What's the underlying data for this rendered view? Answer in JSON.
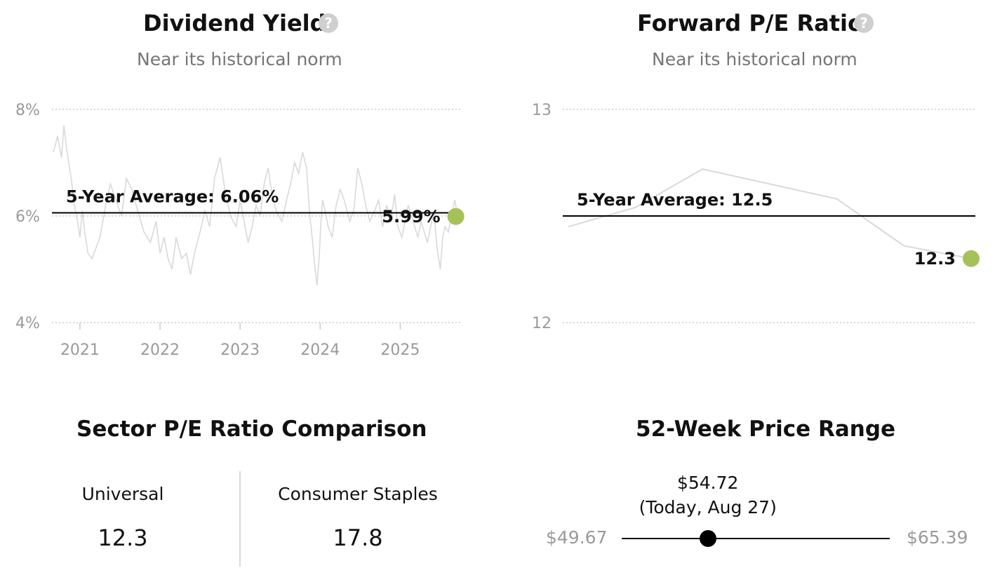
{
  "dividend": {
    "title": "Dividend Yield",
    "help": "?",
    "subtitle": "Near its historical norm"
  },
  "forward_pe": {
    "title": "Forward P/E Ratio",
    "help": "?",
    "subtitle": "Near its historical norm"
  },
  "sector": {
    "title": "Sector P/E Ratio Comparison",
    "items": [
      {
        "label": "Universal",
        "value": "12.3"
      },
      {
        "label": "Consumer Staples",
        "value": "17.8"
      }
    ]
  },
  "price_range": {
    "title": "52-Week Price Range",
    "low": "$49.67",
    "high": "$65.39",
    "current": "$54.72",
    "current_note": "(Today, Aug 27)",
    "current_value": 54.72,
    "low_value": 49.67,
    "high_value": 65.39
  },
  "colors": {
    "accent_dot": "#a7c15a",
    "series_line": "#d9d9d9",
    "average_line": "#000000",
    "grid": "#cccccc"
  },
  "chart_data": [
    {
      "type": "line",
      "title": "Dividend Yield",
      "ylim": [
        4,
        8
      ],
      "yticks": [
        4,
        6,
        8
      ],
      "ytick_labels": [
        "4%",
        "6%",
        "8%"
      ],
      "xticks": [
        "2021",
        "2022",
        "2023",
        "2024",
        "2025"
      ],
      "xtick_values": [
        2021.0,
        2022.0,
        2023.0,
        2024.0,
        2025.0
      ],
      "xlim": [
        2020.65,
        2025.75
      ],
      "average": 6.06,
      "average_label": "5-Year Average: 6.06%",
      "current": 5.99,
      "current_label": "5.99%",
      "grid": true,
      "series": [
        {
          "x": [
            2020.67,
            2020.72,
            2020.77,
            2020.8,
            2020.83,
            2020.87,
            2020.9,
            2020.93,
            2020.97,
            2021.0,
            2021.03,
            2021.06,
            2021.1,
            2021.15,
            2021.2,
            2021.25,
            2021.32,
            2021.38,
            2021.45,
            2021.52,
            2021.58,
            2021.65,
            2021.72,
            2021.8,
            2021.88,
            2021.95,
            2022.0,
            2022.05,
            2022.1,
            2022.15,
            2022.2,
            2022.27,
            2022.33,
            2022.38,
            2022.43,
            2022.5,
            2022.56,
            2022.62,
            2022.68,
            2022.75,
            2022.82,
            2022.88,
            2022.95,
            2023.0,
            2023.05,
            2023.1,
            2023.15,
            2023.2,
            2023.25,
            2023.3,
            2023.35,
            2023.4,
            2023.45,
            2023.52,
            2023.58,
            2023.63,
            2023.68,
            2023.73,
            2023.78,
            2023.83,
            2023.87,
            2023.9,
            2023.93,
            2023.96,
            2023.99,
            2024.01,
            2024.03,
            2024.06,
            2024.1,
            2024.15,
            2024.2,
            2024.25,
            2024.3,
            2024.37,
            2024.42,
            2024.47,
            2024.52,
            2024.57,
            2024.62,
            2024.68,
            2024.73,
            2024.78,
            2024.83,
            2024.88,
            2024.93,
            2024.97,
            2025.02,
            2025.06,
            2025.1,
            2025.14,
            2025.18,
            2025.22,
            2025.26,
            2025.3,
            2025.34,
            2025.38,
            2025.42,
            2025.46,
            2025.5,
            2025.53,
            2025.56,
            2025.6,
            2025.64,
            2025.68,
            2025.72
          ],
          "y": [
            7.2,
            7.5,
            7.1,
            7.7,
            7.3,
            6.9,
            6.6,
            6.2,
            5.9,
            5.6,
            6.1,
            5.7,
            5.3,
            5.2,
            5.4,
            5.6,
            6.2,
            6.6,
            6.3,
            6.0,
            6.7,
            6.5,
            6.1,
            5.7,
            5.5,
            5.9,
            5.3,
            5.6,
            5.2,
            5.0,
            5.6,
            5.2,
            5.3,
            4.9,
            5.3,
            5.7,
            6.1,
            5.8,
            6.7,
            7.1,
            6.4,
            6.0,
            5.8,
            6.3,
            5.9,
            5.5,
            5.8,
            6.2,
            6.0,
            6.6,
            6.9,
            6.4,
            6.1,
            5.9,
            6.3,
            6.6,
            7.0,
            6.8,
            7.2,
            6.9,
            6.0,
            5.6,
            5.1,
            4.7,
            5.3,
            5.9,
            6.3,
            6.1,
            5.8,
            5.6,
            6.2,
            6.5,
            6.3,
            5.9,
            6.1,
            6.9,
            6.6,
            6.2,
            5.9,
            6.1,
            6.3,
            5.8,
            6.2,
            5.9,
            6.4,
            5.8,
            5.6,
            5.9,
            6.2,
            6.0,
            5.8,
            5.6,
            5.9,
            5.7,
            5.5,
            5.8,
            6.1,
            5.4,
            5.0,
            5.6,
            5.8,
            5.7,
            6.0,
            6.3,
            5.99
          ]
        }
      ]
    },
    {
      "type": "line",
      "title": "Forward P/E Ratio",
      "ylim": [
        12,
        13
      ],
      "yticks": [
        12,
        13
      ],
      "ytick_labels": [
        "12",
        "13"
      ],
      "average": 12.5,
      "average_label": "5-Year Average: 12.5",
      "current": 12.3,
      "current_label": "12.3",
      "grid": true,
      "series": [
        {
          "x": [
            0,
            1,
            2,
            3,
            4,
            5,
            6
          ],
          "y": [
            12.45,
            12.54,
            12.72,
            12.65,
            12.58,
            12.36,
            12.3
          ]
        }
      ]
    }
  ]
}
